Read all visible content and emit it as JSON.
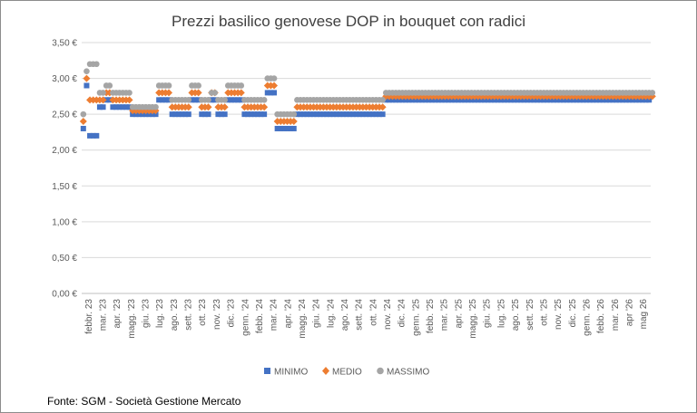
{
  "chart_data": {
    "type": "scatter",
    "title": "Prezzi basilico genovese DOP in bouquet con radici",
    "y_tick_labels": [
      "0,00 €",
      "0,50 €",
      "1,00 €",
      "1,50 €",
      "2,00 €",
      "2,50 €",
      "3,00 €",
      "3,50 €"
    ],
    "ylim": [
      0,
      3.5
    ],
    "grid": true,
    "x_tick_labels": [
      "febbr. 23",
      "mar. '23",
      "apr. '23",
      "magg. '23",
      "giu. '23",
      "lug. '23",
      "ago. '23",
      "sett. '23",
      "ott. '23",
      "nov. '23",
      "dic. '23",
      "genn. '24",
      "febb. '24",
      "mar. '24",
      "apr. '24",
      "magg. '24",
      "giu. '24",
      "lug. '24",
      "ago. '24",
      "sett. '24",
      "ott. '24",
      "nov. '24",
      "dic. '24",
      "genn. '25",
      "febb. '25",
      "mar. '25",
      "apr. '25",
      "magg. '25",
      "giu. '25",
      "lug. '25",
      "ago. '25",
      "sett. '25",
      "ott. '25",
      "nov. '25",
      "dic. '25",
      "genn. '26",
      "febb. '26",
      "mar. '26",
      "apr '26",
      "mag 26"
    ],
    "series": [
      {
        "name": "MINIMO",
        "color": "#4472c4",
        "marker": "square",
        "values": [
          2.3,
          2.9,
          2.2,
          2.2,
          2.2,
          2.6,
          2.6,
          2.7,
          2.7,
          2.6,
          2.6,
          2.6,
          2.6,
          2.6,
          2.6,
          2.5,
          2.5,
          2.5,
          2.5,
          2.5,
          2.5,
          2.5,
          2.5,
          2.7,
          2.7,
          2.7,
          2.7,
          2.5,
          2.5,
          2.5,
          2.5,
          2.5,
          2.5,
          2.7,
          2.7,
          2.7,
          2.5,
          2.5,
          2.5,
          2.7,
          2.7,
          2.5,
          2.5,
          2.5,
          2.7,
          2.7,
          2.7,
          2.7,
          2.7,
          2.5,
          2.5,
          2.5,
          2.5,
          2.5,
          2.5,
          2.5,
          2.8,
          2.8,
          2.8,
          2.3,
          2.3,
          2.3,
          2.3,
          2.3,
          2.3,
          2.5,
          2.5,
          2.5,
          2.5,
          2.5,
          2.5,
          2.5,
          2.5,
          2.5,
          2.5,
          2.5,
          2.5,
          2.5,
          2.5,
          2.5,
          2.5,
          2.5,
          2.5,
          2.5,
          2.5,
          2.5,
          2.5,
          2.5,
          2.5,
          2.5,
          2.5,
          2.5,
          2.7,
          2.7,
          2.7,
          2.7,
          2.7,
          2.7,
          2.7,
          2.7,
          2.7,
          2.7,
          2.7,
          2.7,
          2.7,
          2.7,
          2.7,
          2.7,
          2.7,
          2.7,
          2.7,
          2.7,
          2.7,
          2.7,
          2.7,
          2.7,
          2.7,
          2.7,
          2.7,
          2.7,
          2.7,
          2.7,
          2.7,
          2.7,
          2.7,
          2.7,
          2.7,
          2.7,
          2.7,
          2.7,
          2.7,
          2.7,
          2.7,
          2.7,
          2.7,
          2.7,
          2.7,
          2.7,
          2.7,
          2.7,
          2.7,
          2.7,
          2.7,
          2.7,
          2.7,
          2.7,
          2.7,
          2.7,
          2.7,
          2.7,
          2.7,
          2.7,
          2.7,
          2.7,
          2.7,
          2.7,
          2.7,
          2.7,
          2.7,
          2.7,
          2.7,
          2.7,
          2.7,
          2.7,
          2.7,
          2.7,
          2.7,
          2.7,
          2.7,
          2.7,
          2.7,
          2.7,
          2.7
        ]
      },
      {
        "name": "MEDIO",
        "color": "#ed7d31",
        "marker": "diamond",
        "values": [
          2.4,
          3.0,
          2.7,
          2.7,
          2.7,
          2.7,
          2.7,
          2.8,
          2.8,
          2.7,
          2.7,
          2.7,
          2.7,
          2.7,
          2.7,
          2.55,
          2.55,
          2.55,
          2.55,
          2.55,
          2.55,
          2.55,
          2.55,
          2.8,
          2.8,
          2.8,
          2.8,
          2.6,
          2.6,
          2.6,
          2.6,
          2.6,
          2.6,
          2.8,
          2.8,
          2.8,
          2.6,
          2.6,
          2.6,
          2.8,
          2.8,
          2.6,
          2.6,
          2.6,
          2.8,
          2.8,
          2.8,
          2.8,
          2.8,
          2.6,
          2.6,
          2.6,
          2.6,
          2.6,
          2.6,
          2.6,
          2.9,
          2.9,
          2.9,
          2.4,
          2.4,
          2.4,
          2.4,
          2.4,
          2.4,
          2.6,
          2.6,
          2.6,
          2.6,
          2.6,
          2.6,
          2.6,
          2.6,
          2.6,
          2.6,
          2.6,
          2.6,
          2.6,
          2.6,
          2.6,
          2.6,
          2.6,
          2.6,
          2.6,
          2.6,
          2.6,
          2.6,
          2.6,
          2.6,
          2.6,
          2.6,
          2.6,
          2.75,
          2.75,
          2.75,
          2.75,
          2.75,
          2.75,
          2.75,
          2.75,
          2.75,
          2.75,
          2.75,
          2.75,
          2.75,
          2.75,
          2.75,
          2.75,
          2.75,
          2.75,
          2.75,
          2.75,
          2.75,
          2.75,
          2.75,
          2.75,
          2.75,
          2.75,
          2.75,
          2.75,
          2.75,
          2.75,
          2.75,
          2.75,
          2.75,
          2.75,
          2.75,
          2.75,
          2.75,
          2.75,
          2.75,
          2.75,
          2.75,
          2.75,
          2.75,
          2.75,
          2.75,
          2.75,
          2.75,
          2.75,
          2.75,
          2.75,
          2.75,
          2.75,
          2.75,
          2.75,
          2.75,
          2.75,
          2.75,
          2.75,
          2.75,
          2.75,
          2.75,
          2.75,
          2.75,
          2.75,
          2.75,
          2.75,
          2.75,
          2.75,
          2.75,
          2.75,
          2.75,
          2.75,
          2.75,
          2.75,
          2.75,
          2.75,
          2.75,
          2.75,
          2.75,
          2.75,
          2.75,
          2.75
        ]
      },
      {
        "name": "MASSIMO",
        "color": "#a5a5a5",
        "marker": "circle",
        "values": [
          2.5,
          3.1,
          3.2,
          3.2,
          3.2,
          2.8,
          2.8,
          2.9,
          2.9,
          2.8,
          2.8,
          2.8,
          2.8,
          2.8,
          2.8,
          2.6,
          2.6,
          2.6,
          2.6,
          2.6,
          2.6,
          2.6,
          2.6,
          2.9,
          2.9,
          2.9,
          2.9,
          2.7,
          2.7,
          2.7,
          2.7,
          2.7,
          2.7,
          2.9,
          2.9,
          2.9,
          2.7,
          2.7,
          2.7,
          2.8,
          2.8,
          2.7,
          2.7,
          2.7,
          2.9,
          2.9,
          2.9,
          2.9,
          2.9,
          2.7,
          2.7,
          2.7,
          2.7,
          2.7,
          2.7,
          2.7,
          3.0,
          3.0,
          3.0,
          2.5,
          2.5,
          2.5,
          2.5,
          2.5,
          2.5,
          2.7,
          2.7,
          2.7,
          2.7,
          2.7,
          2.7,
          2.7,
          2.7,
          2.7,
          2.7,
          2.7,
          2.7,
          2.7,
          2.7,
          2.7,
          2.7,
          2.7,
          2.7,
          2.7,
          2.7,
          2.7,
          2.7,
          2.7,
          2.7,
          2.7,
          2.7,
          2.7,
          2.8,
          2.8,
          2.8,
          2.8,
          2.8,
          2.8,
          2.8,
          2.8,
          2.8,
          2.8,
          2.8,
          2.8,
          2.8,
          2.8,
          2.8,
          2.8,
          2.8,
          2.8,
          2.8,
          2.8,
          2.8,
          2.8,
          2.8,
          2.8,
          2.8,
          2.8,
          2.8,
          2.8,
          2.8,
          2.8,
          2.8,
          2.8,
          2.8,
          2.8,
          2.8,
          2.8,
          2.8,
          2.8,
          2.8,
          2.8,
          2.8,
          2.8,
          2.8,
          2.8,
          2.8,
          2.8,
          2.8,
          2.8,
          2.8,
          2.8,
          2.8,
          2.8,
          2.8,
          2.8,
          2.8,
          2.8,
          2.8,
          2.8,
          2.8,
          2.8,
          2.8,
          2.8,
          2.8,
          2.8,
          2.8,
          2.8,
          2.8,
          2.8,
          2.8,
          2.8,
          2.8,
          2.8,
          2.8,
          2.8,
          2.8,
          2.8,
          2.8,
          2.8,
          2.8,
          2.8,
          2.8,
          2.8
        ]
      }
    ],
    "legend_position": "bottom"
  },
  "source_text": "Fonte: SGM - Società Gestione Mercato"
}
